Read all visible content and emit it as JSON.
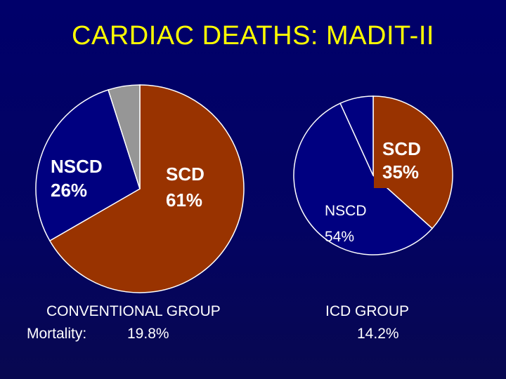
{
  "title": "CARDIAC DEATHS: MADIT-II",
  "chart_data": [
    {
      "type": "pie",
      "slices": [
        {
          "label": "SCD",
          "value": 61,
          "value_text": "61%",
          "color": "#993300"
        },
        {
          "label": "NSCD",
          "value": 26,
          "value_text": "26%",
          "color": "#000080"
        },
        {
          "label": "",
          "value": 4.5,
          "value_text": "",
          "color": "#969696"
        }
      ],
      "caption": {
        "group": "CONVENTIONAL GROUP",
        "mortality_label": "Mortality:",
        "mortality_value": "19.8%"
      }
    },
    {
      "type": "pie",
      "slices": [
        {
          "label": "SCD",
          "value": 35,
          "value_text": "35%",
          "color": "#993300"
        },
        {
          "label": "NSCD",
          "value": 54,
          "value_text": "54%",
          "color": "#000080"
        },
        {
          "label": "",
          "value": 6.5,
          "value_text": "",
          "color": "#000080"
        }
      ],
      "caption": {
        "group": "ICD GROUP",
        "mortality_label": "",
        "mortality_value": "14.2%"
      }
    }
  ]
}
